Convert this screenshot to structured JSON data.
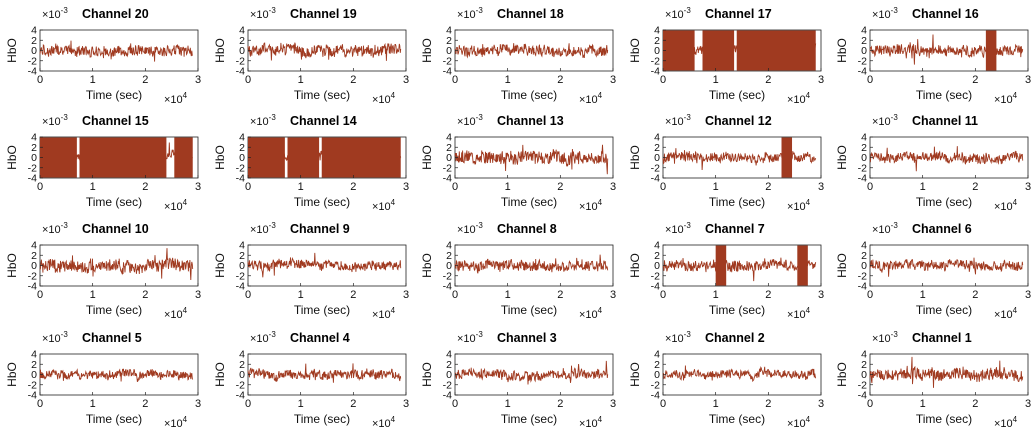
{
  "chart_data": {
    "type": "line",
    "layout": {
      "rows": 4,
      "cols": 5
    },
    "series_color": "#a03a20",
    "common": {
      "xlabel": "Time (sec)",
      "ylabel": "HbO",
      "x_multiplier": "×10",
      "x_multiplier_exp": "4",
      "y_multiplier": "×10",
      "y_multiplier_exp": "-3",
      "xlim": [
        0,
        3
      ],
      "ylim": [
        -4,
        4
      ],
      "xticks": [
        "0",
        "1",
        "2",
        "3"
      ],
      "yticks": [
        "4",
        "2",
        "0",
        "-2",
        "-4"
      ],
      "yaxis_values": [
        4,
        2,
        0,
        -2,
        -4
      ]
    },
    "panels": [
      {
        "title": "Channel 20",
        "amp": 0.9,
        "saturated": []
      },
      {
        "title": "Channel 19",
        "amp": 1.0,
        "saturated": []
      },
      {
        "title": "Channel 18",
        "amp": 0.9,
        "saturated": []
      },
      {
        "title": "Channel 17",
        "amp": 0.8,
        "saturated": [
          [
            0,
            0.6
          ],
          [
            0.75,
            1.35
          ],
          [
            1.4,
            2.9
          ]
        ]
      },
      {
        "title": "Channel 16",
        "amp": 0.9,
        "saturated": [
          [
            2.2,
            2.4
          ]
        ]
      },
      {
        "title": "Channel 15",
        "amp": 0.8,
        "saturated": [
          [
            0,
            0.7
          ],
          [
            0.75,
            2.4
          ],
          [
            2.55,
            2.9
          ]
        ]
      },
      {
        "title": "Channel 14",
        "amp": 0.8,
        "saturated": [
          [
            0,
            0.7
          ],
          [
            0.75,
            1.35
          ],
          [
            1.4,
            2.9
          ]
        ]
      },
      {
        "title": "Channel 13",
        "amp": 1.1,
        "saturated": []
      },
      {
        "title": "Channel 12",
        "amp": 0.8,
        "saturated": [
          [
            2.25,
            2.45
          ]
        ]
      },
      {
        "title": "Channel 11",
        "amp": 0.8,
        "saturated": []
      },
      {
        "title": "Channel 10",
        "amp": 1.1,
        "saturated": []
      },
      {
        "title": "Channel 9",
        "amp": 0.8,
        "saturated": []
      },
      {
        "title": "Channel 8",
        "amp": 0.9,
        "saturated": []
      },
      {
        "title": "Channel 7",
        "amp": 0.9,
        "saturated": [
          [
            1.0,
            1.2
          ],
          [
            2.55,
            2.75
          ]
        ]
      },
      {
        "title": "Channel 6",
        "amp": 0.8,
        "saturated": []
      },
      {
        "title": "Channel 5",
        "amp": 0.7,
        "saturated": []
      },
      {
        "title": "Channel 4",
        "amp": 0.8,
        "saturated": []
      },
      {
        "title": "Channel 3",
        "amp": 0.8,
        "saturated": []
      },
      {
        "title": "Channel 2",
        "amp": 0.7,
        "saturated": []
      },
      {
        "title": "Channel 1",
        "amp": 1.0,
        "saturated": []
      }
    ]
  }
}
